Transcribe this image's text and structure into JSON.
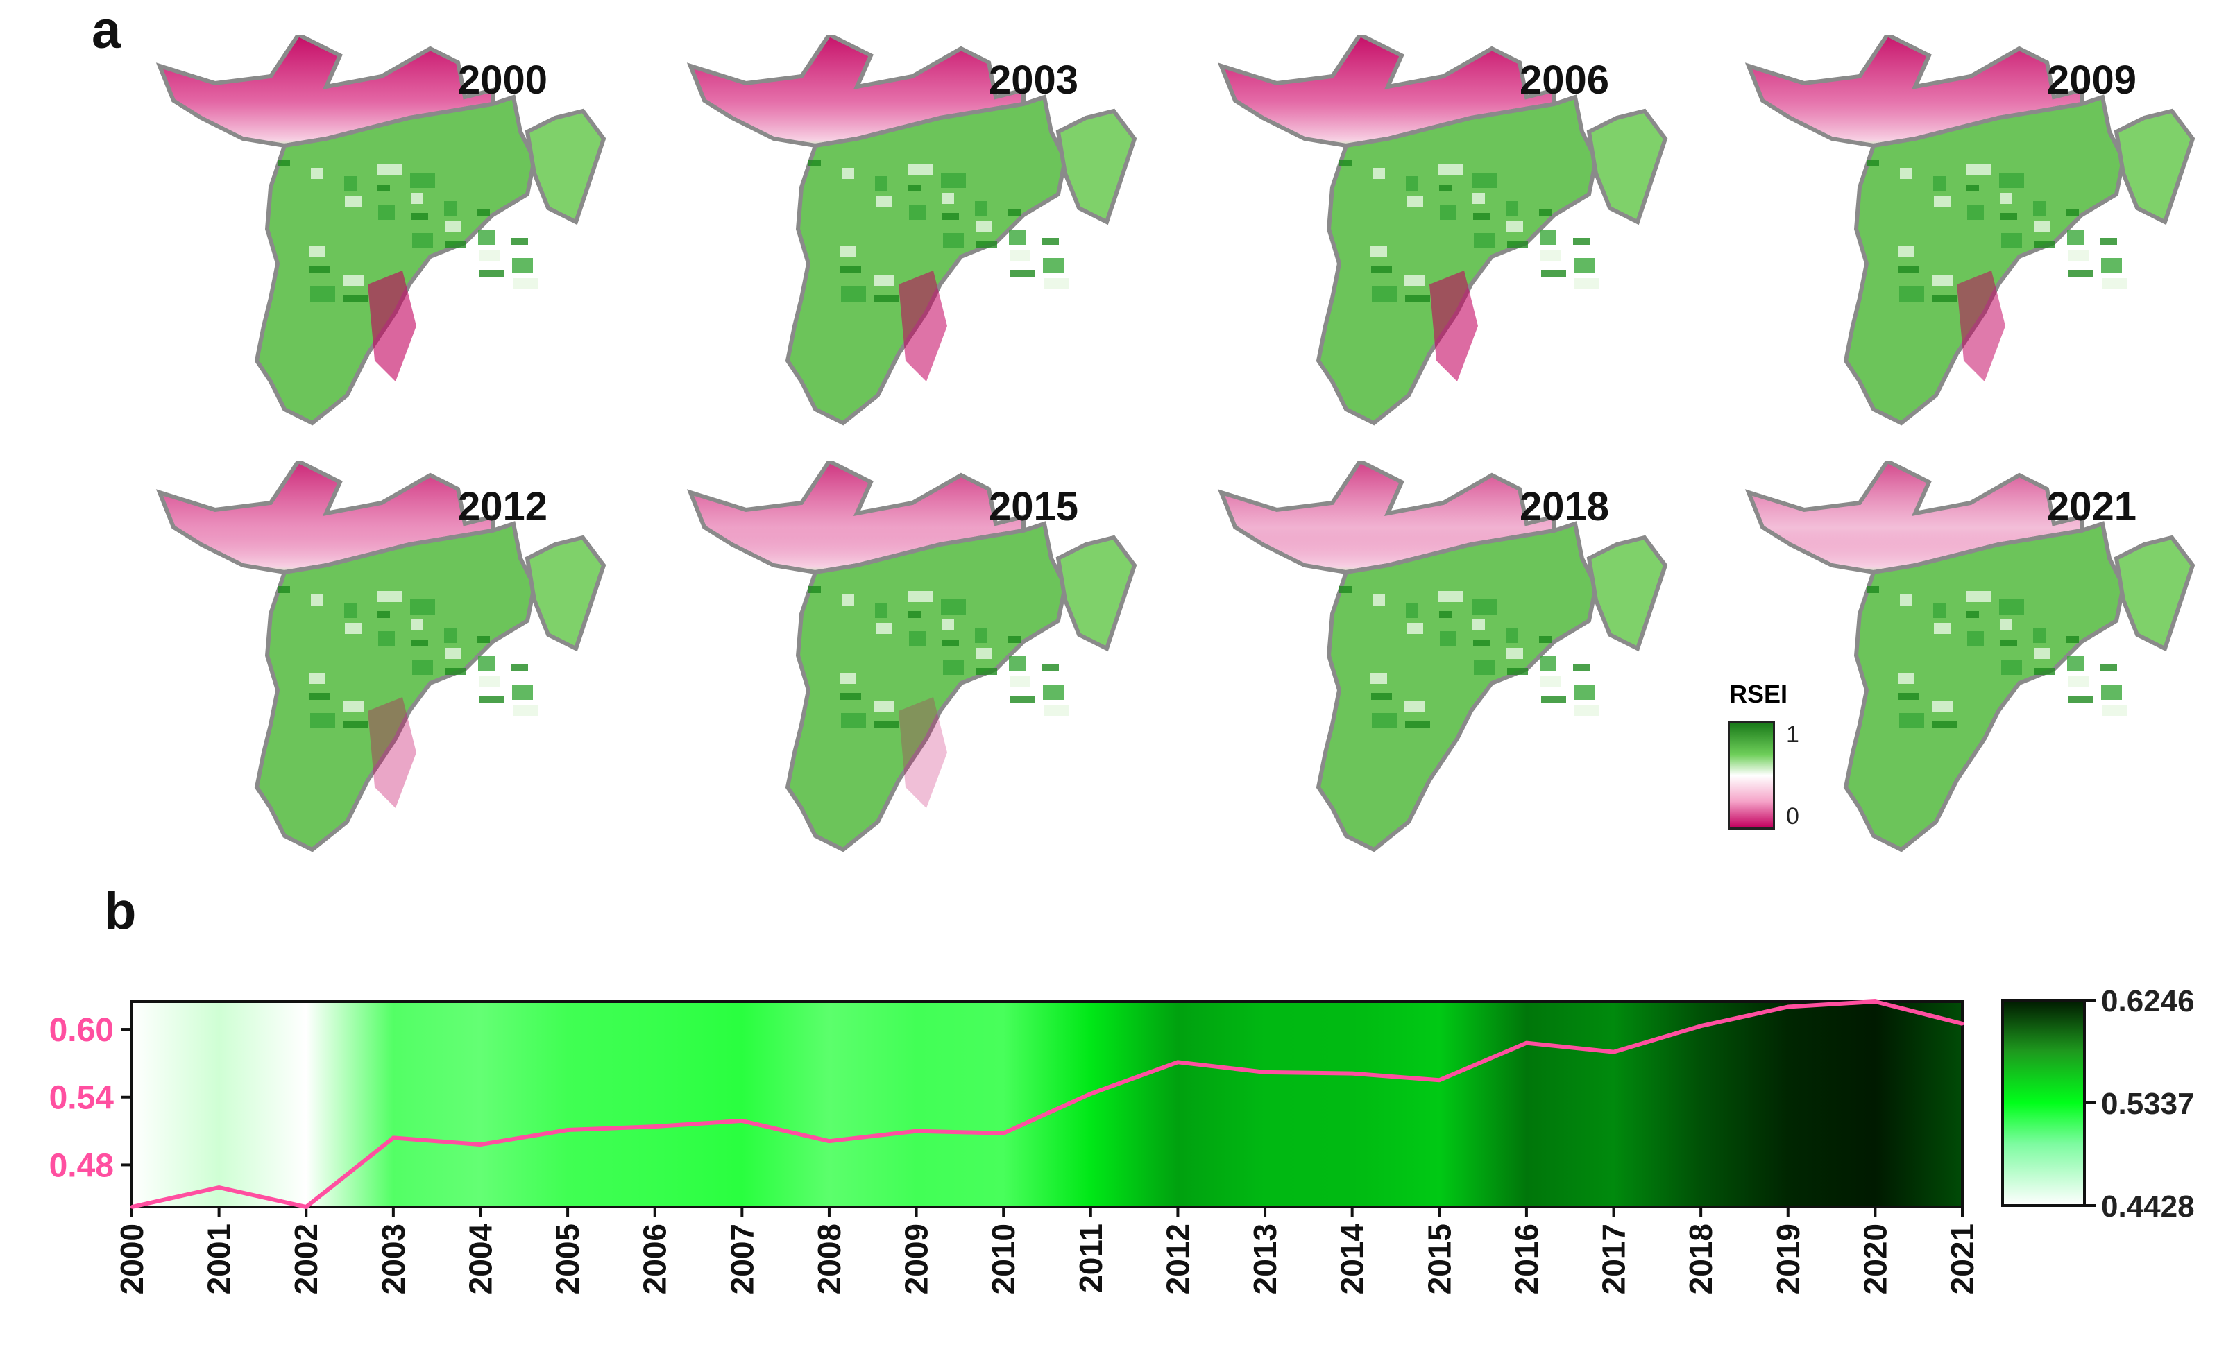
{
  "panel_a": {
    "label": "a",
    "years": [
      "2000",
      "2003",
      "2006",
      "2009",
      "2012",
      "2015",
      "2018",
      "2021"
    ],
    "pink_extent": [
      0.9,
      0.85,
      0.88,
      0.82,
      0.65,
      0.55,
      0.45,
      0.38
    ],
    "legend": {
      "title": "RSEI",
      "max_label": "1",
      "min_label": "0"
    },
    "colors": {
      "high": "#1a7a1a",
      "mid": "#ffffff",
      "low": "#c2005e",
      "outline": "#8a8a8a"
    }
  },
  "panel_b": {
    "label": "b"
  },
  "chart_data": {
    "type": "line",
    "x": [
      "2000",
      "2001",
      "2002",
      "2003",
      "2004",
      "2005",
      "2006",
      "2007",
      "2008",
      "2009",
      "2010",
      "2011",
      "2012",
      "2013",
      "2014",
      "2015",
      "2016",
      "2017",
      "2018",
      "2019",
      "2020",
      "2021"
    ],
    "series": [
      {
        "values": [
          0.4428,
          0.46,
          0.4428,
          0.504,
          0.498,
          0.511,
          0.514,
          0.519,
          0.501,
          0.51,
          0.508,
          0.543,
          0.571,
          0.562,
          0.561,
          0.555,
          0.588,
          0.58,
          0.603,
          0.62,
          0.6246,
          0.605
        ]
      }
    ],
    "ylim": [
      0.4428,
      0.6246
    ],
    "yticks": [
      "0.48",
      "0.54",
      "0.60"
    ],
    "ytick_values": [
      0.48,
      0.54,
      0.6
    ],
    "heat_background": true,
    "colorbar": {
      "tick_labels": [
        "0.6246",
        "0.5337",
        "0.4428"
      ],
      "min": 0.4428,
      "max": 0.6246
    },
    "colors": {
      "line": "#ff4fa0",
      "ytick": "#ff4fa0",
      "heat_low": "#ffffff",
      "heat_mid": "#00ff1a",
      "heat_high": "#001a00"
    }
  }
}
